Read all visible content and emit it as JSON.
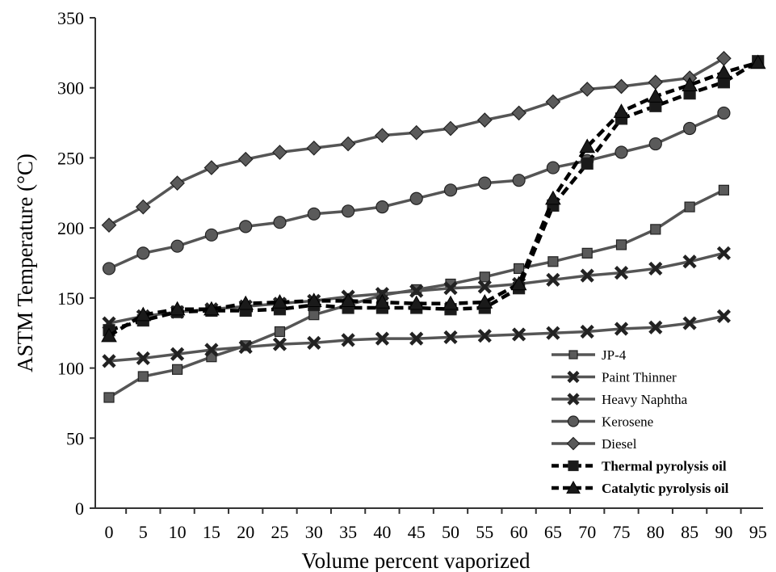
{
  "chart_data": {
    "type": "line",
    "xlabel": "Volume percent vaporized",
    "ylabel": "ASTM Temperature (°C)",
    "xlim": [
      0,
      95
    ],
    "ylim": [
      0,
      350
    ],
    "x_ticks": [
      0,
      5,
      10,
      15,
      20,
      25,
      30,
      35,
      40,
      45,
      50,
      55,
      60,
      65,
      70,
      75,
      80,
      85,
      90,
      95
    ],
    "y_ticks": [
      0,
      50,
      100,
      150,
      200,
      250,
      300,
      350
    ],
    "grid": false,
    "legend_position": "bottom-right",
    "series": [
      {
        "name": "JP-4",
        "marker": "square",
        "dashed": false,
        "color": "#555555",
        "x": [
          0,
          5,
          10,
          15,
          20,
          25,
          30,
          35,
          40,
          45,
          50,
          55,
          60,
          65,
          70,
          75,
          80,
          85,
          90
        ],
        "y": [
          79,
          94,
          99,
          108,
          116,
          126,
          138,
          145,
          152,
          156,
          160,
          165,
          171,
          176,
          182,
          188,
          199,
          215,
          227
        ]
      },
      {
        "name": "Paint Thinner",
        "marker": "x",
        "dashed": false,
        "color": "#555555",
        "x": [
          0,
          5,
          10,
          15,
          20,
          25,
          30,
          35,
          40,
          45,
          50,
          55,
          60,
          65,
          70,
          75,
          80,
          85,
          90
        ],
        "y": [
          105,
          107,
          110,
          113,
          115,
          117,
          118,
          120,
          121,
          121,
          122,
          123,
          124,
          125,
          126,
          128,
          129,
          132,
          137
        ]
      },
      {
        "name": "Heavy Naphtha",
        "marker": "x",
        "dashed": false,
        "color": "#555555",
        "x": [
          0,
          5,
          10,
          15,
          20,
          25,
          30,
          35,
          40,
          45,
          50,
          55,
          60,
          65,
          70,
          75,
          80,
          85,
          90
        ],
        "y": [
          132,
          137,
          140,
          142,
          144,
          146,
          148,
          151,
          153,
          155,
          157,
          158,
          160,
          163,
          166,
          168,
          171,
          176,
          182
        ]
      },
      {
        "name": "Kerosene",
        "marker": "circle",
        "dashed": false,
        "color": "#555555",
        "x": [
          0,
          5,
          10,
          15,
          20,
          25,
          30,
          35,
          40,
          45,
          50,
          55,
          60,
          65,
          70,
          75,
          80,
          85,
          90
        ],
        "y": [
          171,
          182,
          187,
          195,
          201,
          204,
          210,
          212,
          215,
          221,
          227,
          232,
          234,
          243,
          248,
          254,
          260,
          271,
          282
        ]
      },
      {
        "name": "Diesel",
        "marker": "diamond",
        "dashed": false,
        "color": "#555555",
        "x": [
          0,
          5,
          10,
          15,
          20,
          25,
          30,
          35,
          40,
          45,
          50,
          55,
          60,
          65,
          70,
          75,
          80,
          85,
          90
        ],
        "y": [
          202,
          215,
          232,
          243,
          249,
          254,
          257,
          260,
          266,
          268,
          271,
          277,
          282,
          290,
          299,
          301,
          304,
          307,
          321
        ]
      },
      {
        "name": "Thermal pyrolysis oil",
        "marker": "square",
        "dashed": true,
        "color": "#000000",
        "x": [
          0,
          5,
          10,
          15,
          20,
          25,
          30,
          35,
          40,
          45,
          50,
          55,
          60,
          65,
          70,
          75,
          80,
          85,
          90,
          95
        ],
        "y": [
          127,
          134,
          140,
          141,
          141,
          142,
          145,
          143,
          143,
          143,
          142,
          143,
          157,
          216,
          246,
          278,
          287,
          296,
          304,
          319
        ]
      },
      {
        "name": "Catalytic pyrolysis oil",
        "marker": "triangle",
        "dashed": true,
        "color": "#000000",
        "x": [
          0,
          5,
          10,
          15,
          20,
          25,
          30,
          35,
          40,
          45,
          50,
          55,
          60,
          65,
          70,
          75,
          80,
          85,
          90,
          95
        ],
        "y": [
          123,
          138,
          142,
          142,
          146,
          147,
          148,
          148,
          147,
          146,
          146,
          147,
          160,
          221,
          258,
          283,
          294,
          302,
          311,
          318
        ]
      }
    ]
  }
}
